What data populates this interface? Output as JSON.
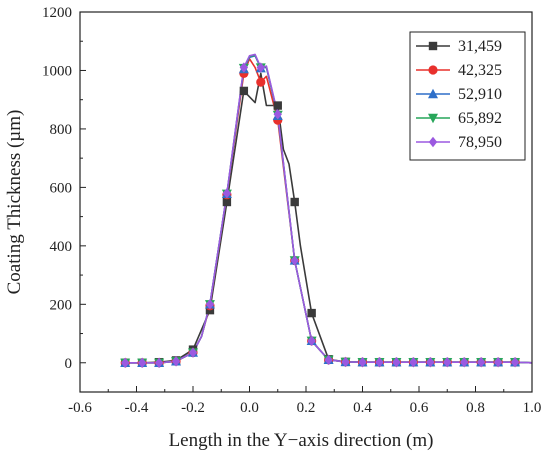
{
  "chart_data": {
    "type": "line",
    "xlabel": "Length in the Y−axis direction (m)",
    "ylabel": "Coating Thickness (µm)",
    "xlim": [
      -0.6,
      1.0
    ],
    "ylim": [
      -100,
      1200
    ],
    "xticks": [
      -0.6,
      -0.4,
      -0.2,
      0.0,
      0.2,
      0.4,
      0.6,
      0.8,
      1.0
    ],
    "xtick_labels": [
      "-0.6",
      "-0.4",
      "-0.2",
      "0.0",
      "0.2",
      "0.4",
      "0.6",
      "0.8",
      "1.0"
    ],
    "yticks": [
      0,
      200,
      400,
      600,
      800,
      1000,
      1200
    ],
    "ytick_labels": [
      "0",
      "200",
      "400",
      "600",
      "800",
      "1000",
      "1200"
    ],
    "grid": false,
    "legend_position": "top-right",
    "series": [
      {
        "name": "31,459",
        "color": "#3a3a3a",
        "marker": "square",
        "x": [
          -0.44,
          -0.38,
          -0.32,
          -0.26,
          -0.2,
          -0.14,
          -0.08,
          -0.02,
          0.02,
          0.04,
          0.06,
          0.1,
          0.12,
          0.14,
          0.16,
          0.18,
          0.22,
          0.28,
          0.34,
          0.4,
          0.46,
          0.52,
          0.58,
          0.64,
          0.7,
          0.76,
          0.82,
          0.88,
          0.94,
          1.0
        ],
        "y": [
          0,
          0,
          2,
          8,
          45,
          180,
          550,
          930,
          890,
          990,
          880,
          880,
          730,
          680,
          550,
          400,
          170,
          12,
          3,
          2,
          2,
          2,
          2,
          2,
          2,
          2,
          2,
          2,
          2,
          0
        ],
        "marked": [
          true,
          true,
          true,
          true,
          true,
          true,
          true,
          true,
          false,
          false,
          false,
          true,
          false,
          false,
          true,
          false,
          true,
          true,
          true,
          true,
          true,
          true,
          true,
          true,
          true,
          true,
          true,
          true,
          true,
          false
        ]
      },
      {
        "name": "42,325",
        "color": "#e8302c",
        "marker": "circle",
        "x": [
          -0.44,
          -0.38,
          -0.32,
          -0.26,
          -0.2,
          -0.17,
          -0.14,
          -0.08,
          -0.02,
          0.0,
          0.02,
          0.04,
          0.06,
          0.1,
          0.16,
          0.22,
          0.28,
          0.34,
          0.4,
          0.46,
          0.52,
          0.58,
          0.64,
          0.7,
          0.76,
          0.82,
          0.88,
          0.94,
          1.0
        ],
        "y": [
          0,
          0,
          0,
          5,
          35,
          90,
          195,
          575,
          990,
          1040,
          1010,
          960,
          980,
          830,
          350,
          75,
          10,
          3,
          2,
          2,
          2,
          2,
          2,
          2,
          2,
          2,
          2,
          2,
          0
        ],
        "marked": [
          true,
          true,
          true,
          true,
          true,
          false,
          true,
          true,
          true,
          false,
          false,
          true,
          false,
          true,
          true,
          true,
          true,
          true,
          true,
          true,
          true,
          true,
          true,
          true,
          true,
          true,
          true,
          true,
          false
        ]
      },
      {
        "name": "52,910",
        "color": "#2e6fc9",
        "marker": "triangle-up",
        "x": [
          -0.44,
          -0.38,
          -0.32,
          -0.26,
          -0.2,
          -0.17,
          -0.14,
          -0.08,
          -0.02,
          0.0,
          0.02,
          0.04,
          0.06,
          0.1,
          0.16,
          0.22,
          0.28,
          0.34,
          0.4,
          0.46,
          0.52,
          0.58,
          0.64,
          0.7,
          0.76,
          0.82,
          0.88,
          0.94,
          1.0
        ],
        "y": [
          0,
          0,
          0,
          5,
          35,
          90,
          200,
          578,
          1005,
          1045,
          1050,
          1008,
          1010,
          845,
          350,
          75,
          10,
          3,
          2,
          2,
          2,
          2,
          2,
          2,
          2,
          2,
          2,
          2,
          0
        ],
        "marked": [
          true,
          true,
          true,
          true,
          true,
          false,
          true,
          true,
          true,
          false,
          false,
          true,
          false,
          true,
          true,
          true,
          true,
          true,
          true,
          true,
          true,
          true,
          true,
          true,
          true,
          true,
          true,
          true,
          false
        ]
      },
      {
        "name": "65,892",
        "color": "#27a65a",
        "marker": "triangle-down",
        "x": [
          -0.44,
          -0.38,
          -0.32,
          -0.26,
          -0.2,
          -0.17,
          -0.14,
          -0.08,
          -0.02,
          0.0,
          0.02,
          0.04,
          0.06,
          0.1,
          0.16,
          0.22,
          0.28,
          0.34,
          0.4,
          0.46,
          0.52,
          0.58,
          0.64,
          0.7,
          0.76,
          0.82,
          0.88,
          0.94,
          1.0
        ],
        "y": [
          0,
          0,
          0,
          5,
          35,
          90,
          200,
          578,
          1008,
          1048,
          1052,
          1010,
          1012,
          848,
          350,
          75,
          10,
          3,
          2,
          2,
          2,
          2,
          2,
          2,
          2,
          2,
          2,
          2,
          0
        ],
        "marked": [
          true,
          true,
          true,
          true,
          true,
          false,
          true,
          true,
          true,
          false,
          false,
          true,
          false,
          true,
          true,
          true,
          true,
          true,
          true,
          true,
          true,
          true,
          true,
          true,
          true,
          true,
          true,
          true,
          false
        ]
      },
      {
        "name": "78,950",
        "color": "#9b59e0",
        "marker": "diamond",
        "x": [
          -0.44,
          -0.38,
          -0.32,
          -0.26,
          -0.2,
          -0.17,
          -0.14,
          -0.08,
          -0.02,
          0.0,
          0.02,
          0.04,
          0.06,
          0.1,
          0.16,
          0.22,
          0.28,
          0.34,
          0.4,
          0.46,
          0.52,
          0.58,
          0.64,
          0.7,
          0.76,
          0.82,
          0.88,
          0.94,
          1.0
        ],
        "y": [
          0,
          0,
          0,
          5,
          35,
          90,
          200,
          580,
          1010,
          1050,
          1055,
          1010,
          1015,
          850,
          350,
          75,
          10,
          3,
          2,
          2,
          2,
          2,
          2,
          2,
          2,
          2,
          2,
          2,
          0
        ],
        "marked": [
          true,
          true,
          true,
          true,
          true,
          false,
          true,
          true,
          true,
          false,
          false,
          true,
          false,
          true,
          true,
          true,
          true,
          true,
          true,
          true,
          true,
          true,
          true,
          true,
          true,
          true,
          true,
          true,
          false
        ]
      }
    ]
  }
}
